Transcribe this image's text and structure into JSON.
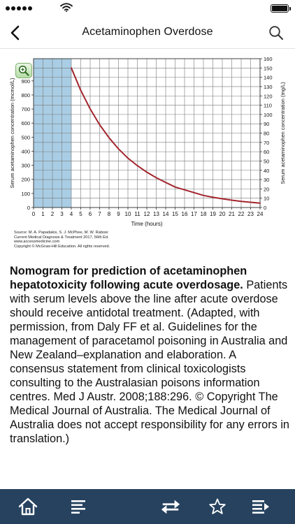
{
  "status_bar": {
    "signal_icon": "signal-dots-icon",
    "wifi_icon": "wifi-icon",
    "battery_icon": "battery-icon"
  },
  "header": {
    "title": "Acetaminophen Overdose",
    "back_icon": "chevron-left-icon",
    "search_icon": "search-icon"
  },
  "figure": {
    "zoom_icon": "zoom-in-icon",
    "source_lines": [
      "Source: M. A. Papadakis, S. J. McPhee, M. W. Rabow:",
      "Current Medical Diagnosis & Treatment 2017, 56th Ed.",
      "www.accessmedicine.com",
      "Copyright © McGraw-Hill Education. All rights reserved."
    ]
  },
  "chart_data": {
    "type": "line",
    "title": "",
    "xlabel": "Time (hours)",
    "ylabel_left": "Serum acetaminophen concentration (mcmol/L)",
    "ylabel_right": "Serum acetaminophen concentration (mg/L)",
    "x_ticks": [
      0,
      1,
      2,
      3,
      4,
      5,
      6,
      7,
      8,
      9,
      10,
      11,
      12,
      13,
      14,
      15,
      16,
      17,
      18,
      19,
      20,
      21,
      22,
      23,
      24
    ],
    "y_left_ticks": [
      0,
      100,
      200,
      300,
      400,
      500,
      600,
      700,
      800,
      900
    ],
    "y_right_ticks": [
      0,
      10,
      20,
      30,
      40,
      50,
      60,
      70,
      80,
      90,
      100,
      110,
      120,
      130,
      140,
      150,
      160
    ],
    "xlim": [
      0,
      24
    ],
    "ylim_right": [
      0,
      160
    ],
    "ylim_left": [
      0,
      1058
    ],
    "grid": true,
    "shaded_region": {
      "x_start": 0,
      "x_end": 4,
      "color": "#a9cde4"
    },
    "series": [
      {
        "color": "#a3252e",
        "x": [
          4,
          5,
          6,
          7,
          8,
          9,
          10,
          11,
          12,
          13,
          14,
          15,
          16,
          17,
          18,
          19,
          20,
          21,
          22,
          23,
          24
        ],
        "y": [
          150,
          126,
          106,
          89,
          75,
          63,
          53,
          45,
          38,
          32,
          27,
          22,
          19,
          16,
          13,
          11,
          9.4,
          7.9,
          6.6,
          5.6,
          4.7
        ]
      }
    ]
  },
  "caption": {
    "bold": "Nomogram for prediction of acetaminophen hepatotoxicity following acute overdosage.",
    "body": " Patients with serum levels above the line after acute overdose should receive antidotal treatment. (Adapted, with permission, from Daly FF et al. Guidelines for the management of paracetamol poisoning in Australia and New Zealand–explanation and elaboration. A consensus statement from clinical toxicologists consulting to the Australasian poisons information centres. Med J Austr. 2008;188:296. © Copyright The Medical Journal of Australia. The Medical Journal of Australia does not accept responsibility for any errors in translation.)"
  },
  "tab_bar": {
    "background": "#26425f",
    "icons": [
      "home-icon",
      "list-icon",
      "swap-arrows-icon",
      "star-icon",
      "sections-icon"
    ]
  }
}
